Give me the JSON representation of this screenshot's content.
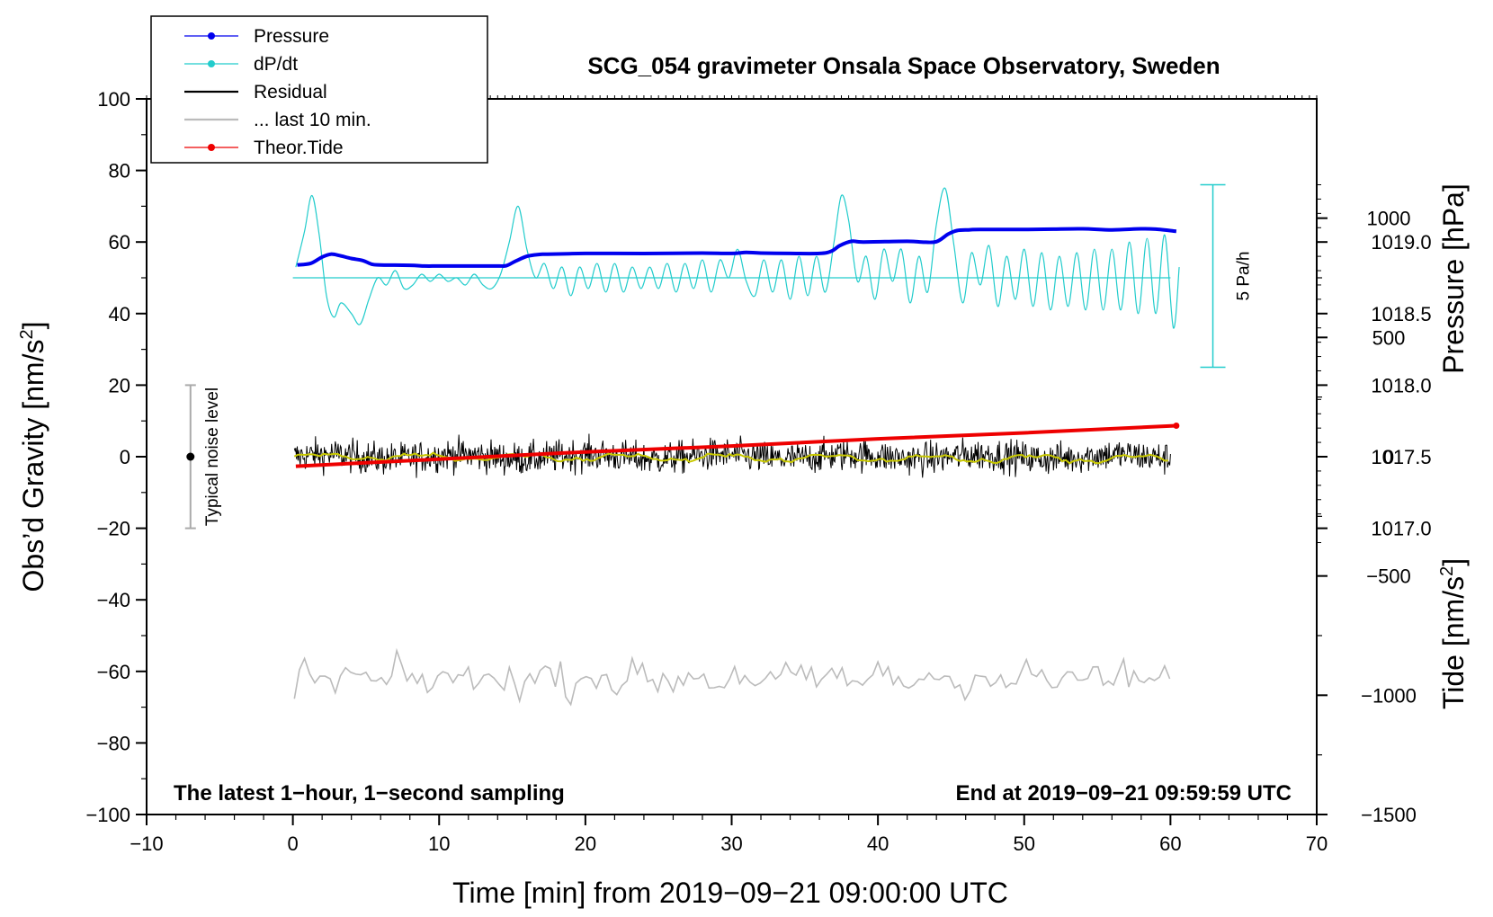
{
  "chart_data": {
    "type": "line",
    "title": "SCG_054 gravimeter Onsala Space Observatory, Sweden",
    "xlabel": "Time [min] from 2019−09−21 09:00:00 UTC",
    "ylabel": "Obs’d Gravity [nm/s²]",
    "ylabel_base": "Obs’d Gravity [nm/s",
    "ylabel_tail": "]",
    "y2label": "Pressure [hPa]",
    "y3label_base": "Tide [nm/s",
    "y3label_tail": "]",
    "unit_exp": "2",
    "xlim": [
      -10,
      70
    ],
    "ylim": [
      -100,
      100
    ],
    "pressure_lim": [
      1015.0,
      1020.0
    ],
    "tide_lim": [
      -1500,
      1500
    ],
    "xticks": [
      -10,
      0,
      10,
      20,
      30,
      40,
      50,
      60,
      70
    ],
    "xtick_labels": [
      "−10",
      "0",
      "10",
      "20",
      "30",
      "40",
      "50",
      "60",
      "70"
    ],
    "yticks": [
      -100,
      -80,
      -60,
      -40,
      -20,
      0,
      20,
      40,
      60,
      80,
      100
    ],
    "ytick_labels": [
      "−100",
      "−80",
      "−60",
      "−40",
      "−20",
      "0",
      "20",
      "40",
      "60",
      "80",
      "100"
    ],
    "pressure_ticks": [
      1017.0,
      1017.5,
      1018.0,
      1018.5,
      1019.0
    ],
    "pressure_tick_labels": [
      "1017.0",
      "1017.5",
      "1018.0",
      "1018.5",
      "1019.0"
    ],
    "tide_ticks": [
      -1500,
      -1000,
      -500,
      0,
      500,
      1000
    ],
    "tide_tick_labels": [
      "−1500",
      "−1000",
      "−500",
      "0",
      "500",
      "1000"
    ],
    "legend": [
      {
        "label": "Pressure",
        "color": "#0000ee",
        "marker": true
      },
      {
        "label": "dP/dt",
        "color": "#22cccc",
        "marker": true
      },
      {
        "label": "Residual",
        "color": "#000000",
        "marker": false
      },
      {
        "label": "... last 10 min.",
        "color": "#bbbbbb",
        "marker": false
      },
      {
        "label": "Theor.Tide",
        "color": "#ee0000",
        "marker": true
      }
    ],
    "legend_position": "top-left",
    "annotations": {
      "left_note": "The latest 1−hour, 1−second sampling",
      "right_note": "End at 2019−09−21 09:59:59 UTC",
      "noise_label": "Typical noise level",
      "noise_range": [
        -20,
        20
      ],
      "noise_x": -7,
      "rate_label": "5 Pa/h",
      "rate_bar_top": 76,
      "rate_bar_bottom": 25,
      "rate_bar_x": 62.9
    },
    "series": [
      {
        "name": "Pressure",
        "color": "#0000ee",
        "axis": "left",
        "x": [
          0.3,
          1.2,
          2.0,
          2.6,
          3.2,
          4.0,
          4.8,
          5.4,
          6.0,
          8.0,
          9.0,
          10.0,
          12.0,
          14.0,
          14.6,
          15.2,
          16.0,
          16.8,
          17.4,
          20.0,
          22.0,
          25.0,
          28.0,
          30.0,
          31.0,
          32.0,
          34.0,
          36.0,
          36.8,
          37.4,
          38.2,
          39.0,
          42.0,
          43.0,
          44.0,
          44.8,
          45.4,
          46.2,
          47.0,
          50.0,
          52.0,
          54.0,
          56.0,
          58.0,
          59.0,
          60.4
        ],
        "y": [
          53.6,
          54.0,
          55.8,
          56.6,
          56.2,
          55.4,
          54.8,
          53.8,
          53.6,
          53.5,
          53.3,
          53.3,
          53.3,
          53.3,
          53.4,
          54.6,
          56.0,
          56.5,
          56.6,
          56.8,
          56.8,
          56.8,
          56.9,
          56.8,
          57.1,
          56.9,
          56.8,
          56.8,
          57.4,
          59.0,
          60.2,
          60.0,
          60.2,
          60.0,
          60.1,
          62.2,
          63.2,
          63.4,
          63.5,
          63.5,
          63.6,
          63.7,
          63.4,
          63.7,
          63.6,
          63.0
        ]
      },
      {
        "name": "dP/dt",
        "color": "#22cccc",
        "axis": "left",
        "x": [
          0.2,
          0.8,
          1.3,
          1.8,
          2.3,
          2.8,
          3.3,
          4.0,
          4.6,
          5.2,
          5.8,
          6.4,
          7.0,
          7.6,
          8.2,
          8.8,
          9.4,
          10.0,
          10.6,
          11.2,
          11.8,
          12.4,
          13.0,
          13.6,
          14.2,
          14.8,
          15.4,
          16.0,
          16.6,
          17.2,
          17.8,
          18.4,
          19.0,
          19.6,
          20.2,
          20.8,
          21.4,
          22.0,
          22.6,
          23.2,
          23.8,
          24.4,
          25.0,
          25.6,
          26.2,
          26.8,
          27.4,
          28.0,
          28.6,
          29.2,
          29.8,
          30.4,
          31.0,
          31.6,
          32.2,
          32.8,
          33.4,
          34.0,
          34.6,
          35.2,
          35.8,
          36.4,
          37.0,
          37.5,
          38.0,
          38.6,
          39.2,
          39.8,
          40.4,
          41.0,
          41.6,
          42.2,
          42.8,
          43.4,
          44.0,
          44.6,
          45.2,
          45.8,
          46.4,
          47.0,
          47.6,
          48.2,
          48.8,
          49.4,
          50.0,
          50.6,
          51.2,
          51.8,
          52.4,
          53.0,
          53.6,
          54.2,
          54.8,
          55.4,
          56.0,
          56.6,
          57.2,
          57.8,
          58.4,
          59.0,
          59.6,
          60.2,
          60.6
        ],
        "y": [
          53,
          63,
          73,
          62,
          45,
          39,
          43,
          40,
          37,
          44,
          50,
          48,
          52,
          47,
          48,
          51,
          49,
          51,
          49,
          50,
          48,
          51,
          48,
          47,
          51,
          60,
          70,
          58,
          50,
          54,
          47,
          53,
          45,
          53,
          47,
          54,
          46,
          54,
          46,
          53,
          47,
          53,
          47,
          54,
          46,
          54,
          47,
          55,
          46,
          55,
          50,
          58,
          49,
          45,
          55,
          46,
          55,
          44,
          56,
          45,
          56,
          46,
          60,
          73,
          66,
          49,
          56,
          44,
          58,
          49,
          58,
          43,
          56,
          46,
          65,
          75,
          59,
          43,
          57,
          48,
          59,
          42,
          56,
          44,
          58,
          42,
          57,
          41,
          56,
          42,
          57,
          41,
          58,
          41,
          58,
          41,
          60,
          40,
          61,
          40,
          62,
          36,
          53
        ]
      },
      {
        "name": "dP/dt zero",
        "color": "#22cccc",
        "axis": "left",
        "x": [
          0,
          60
        ],
        "y": [
          50,
          50
        ]
      },
      {
        "name": "Theor.Tide",
        "color": "#ee0000",
        "axis": "tide",
        "x": [
          0.2,
          10,
          20,
          30,
          40,
          50,
          60.4
        ],
        "y": [
          -40,
          -10,
          20,
          45,
          75,
          100,
          130
        ]
      }
    ]
  }
}
